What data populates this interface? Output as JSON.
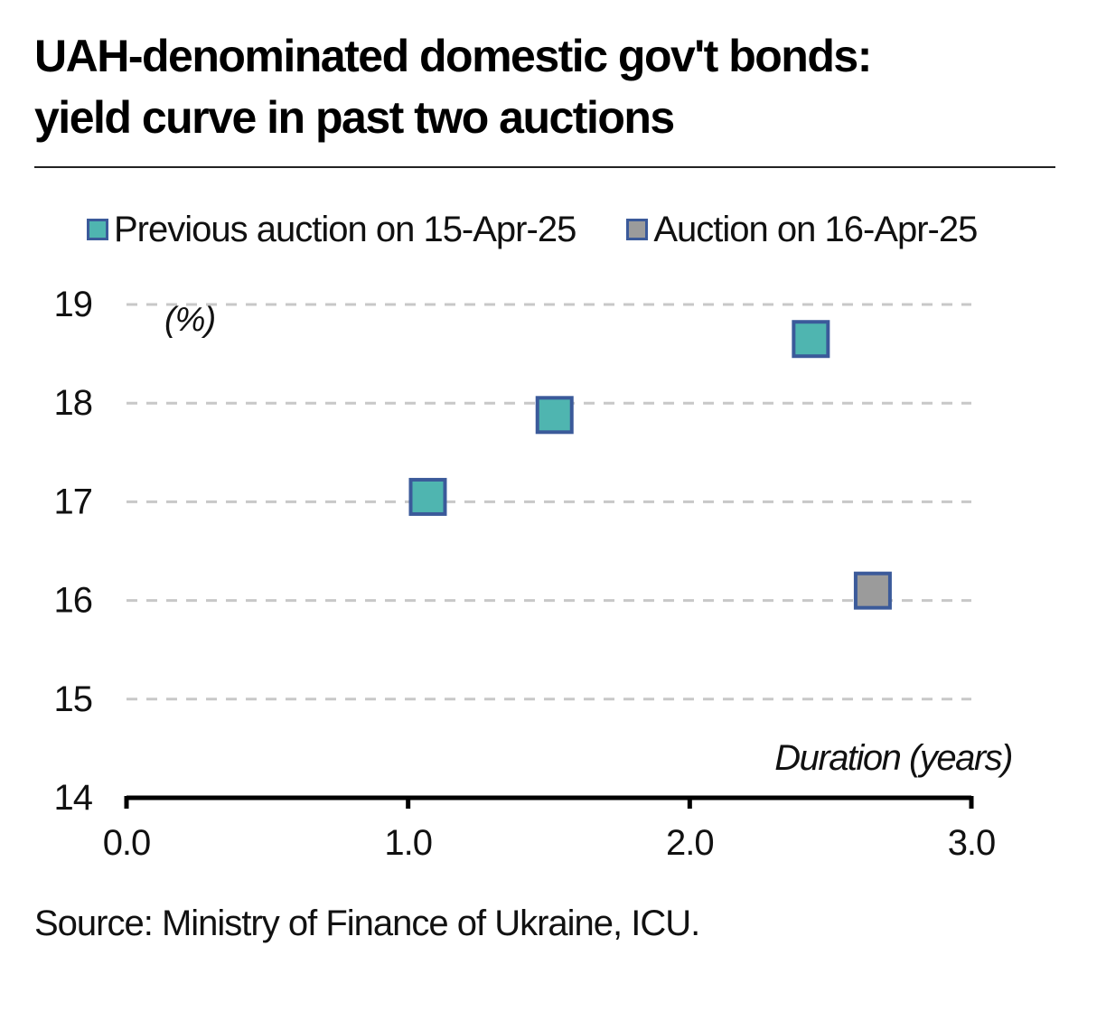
{
  "title": {
    "line1": "UAH-denominated domestic gov't bonds:",
    "line2": "yield curve in past two auctions"
  },
  "source": "Source: Ministry of Finance of Ukraine, ICU.",
  "chart_data": {
    "type": "scatter",
    "title": "UAH-denominated domestic gov't bonds: yield curve in past two auctions",
    "xlabel": "Duration (years)",
    "ylabel": "(%)",
    "xlim": [
      0,
      3
    ],
    "ylim": [
      14,
      19
    ],
    "x_ticks": [
      "0.0",
      "1.0",
      "2.0",
      "3.0"
    ],
    "y_ticks": [
      "14",
      "15",
      "16",
      "17",
      "18",
      "19"
    ],
    "grid": true,
    "legend_position": "top",
    "series": [
      {
        "name": "Previous auction on 15-Apr-25",
        "color": "#4fb5b0",
        "edge_color": "#3b5a9a",
        "points": [
          {
            "x": 1.07,
            "y": 17.05
          },
          {
            "x": 1.52,
            "y": 17.88
          },
          {
            "x": 2.43,
            "y": 18.65
          }
        ]
      },
      {
        "name": "Auction on 16-Apr-25",
        "color": "#9b9b9b",
        "edge_color": "#3b5a9a",
        "points": [
          {
            "x": 2.65,
            "y": 16.1
          }
        ]
      }
    ]
  }
}
